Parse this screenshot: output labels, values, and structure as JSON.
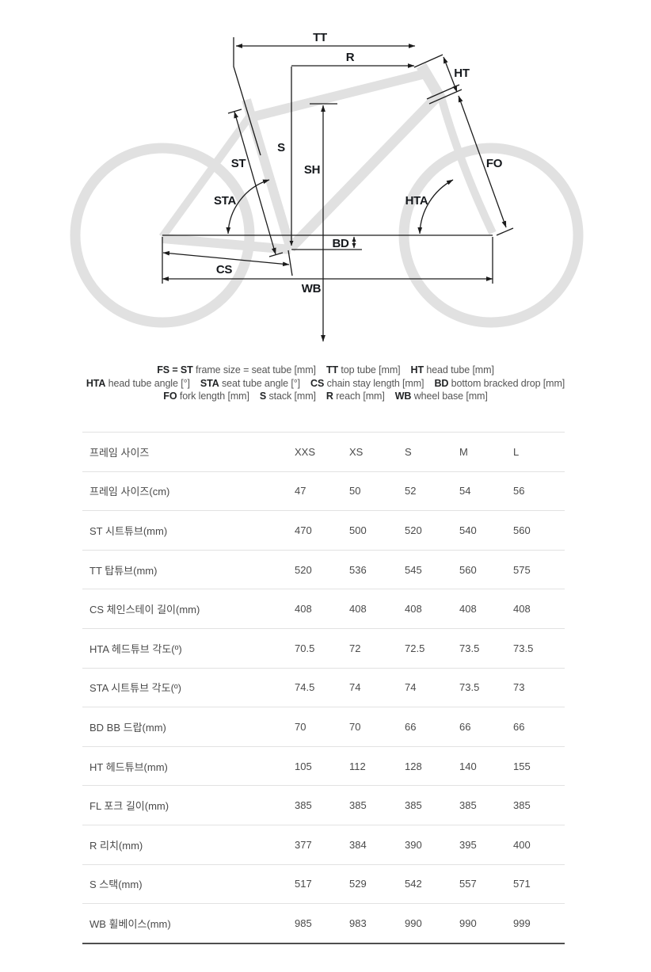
{
  "diagram": {
    "labels": {
      "tt": "TT",
      "r": "R",
      "ht": "HT",
      "st": "ST",
      "s": "S",
      "sh": "SH",
      "fo": "FO",
      "sta": "STA",
      "hta": "HTA",
      "bd": "BD",
      "cs": "CS",
      "wb": "WB"
    },
    "frame_color": "#e1e1e1",
    "line_color": "#1c1c1c"
  },
  "legend": {
    "lines": [
      [
        {
          "abbr": "FS = ST",
          "desc": "frame size = seat tube [mm]"
        },
        {
          "abbr": "TT",
          "desc": "top tube [mm]"
        },
        {
          "abbr": "HT",
          "desc": "head tube [mm]"
        }
      ],
      [
        {
          "abbr": "HTA",
          "desc": "head tube angle [°]"
        },
        {
          "abbr": "STA",
          "desc": "seat tube angle [°]"
        },
        {
          "abbr": "CS",
          "desc": "chain stay length [mm]"
        },
        {
          "abbr": "BD",
          "desc": "bottom bracked drop [mm]"
        }
      ],
      [
        {
          "abbr": "FO",
          "desc": "fork length [mm]"
        },
        {
          "abbr": "S",
          "desc": "stack [mm]"
        },
        {
          "abbr": "R",
          "desc": "reach [mm]"
        },
        {
          "abbr": "WB",
          "desc": "wheel base [mm]"
        }
      ]
    ]
  },
  "table": {
    "header": {
      "label": "프레임 사이즈",
      "columns": [
        "XXS",
        "XS",
        "S",
        "M",
        "L"
      ]
    },
    "rows": [
      {
        "label": "프레임 사이즈(cm)",
        "values": [
          "47",
          "50",
          "52",
          "54",
          "56"
        ]
      },
      {
        "label": "ST 시트튜브(mm)",
        "values": [
          "470",
          "500",
          "520",
          "540",
          "560"
        ]
      },
      {
        "label": "TT 탑튜브(mm)",
        "values": [
          "520",
          "536",
          "545",
          "560",
          "575"
        ]
      },
      {
        "label": "CS 체인스테이 길이(mm)",
        "values": [
          "408",
          "408",
          "408",
          "408",
          "408"
        ]
      },
      {
        "label": "HTA 헤드튜브 각도(º)",
        "values": [
          "70.5",
          "72",
          "72.5",
          "73.5",
          "73.5"
        ]
      },
      {
        "label": "STA 시트튜브 각도(º)",
        "values": [
          "74.5",
          "74",
          "74",
          "73.5",
          "73"
        ]
      },
      {
        "label": "BD BB 드랍(mm)",
        "values": [
          "70",
          "70",
          "66",
          "66",
          "66"
        ]
      },
      {
        "label": "HT 헤드튜브(mm)",
        "values": [
          "105",
          "112",
          "128",
          "140",
          "155"
        ]
      },
      {
        "label": "FL 포크 길이(mm)",
        "values": [
          "385",
          "385",
          "385",
          "385",
          "385"
        ]
      },
      {
        "label": "R 리치(mm)",
        "values": [
          "377",
          "384",
          "390",
          "395",
          "400"
        ]
      },
      {
        "label": "S 스택(mm)",
        "values": [
          "517",
          "529",
          "542",
          "557",
          "571"
        ]
      },
      {
        "label": "WB 휠베이스(mm)",
        "values": [
          "985",
          "983",
          "990",
          "990",
          "999"
        ]
      }
    ]
  }
}
